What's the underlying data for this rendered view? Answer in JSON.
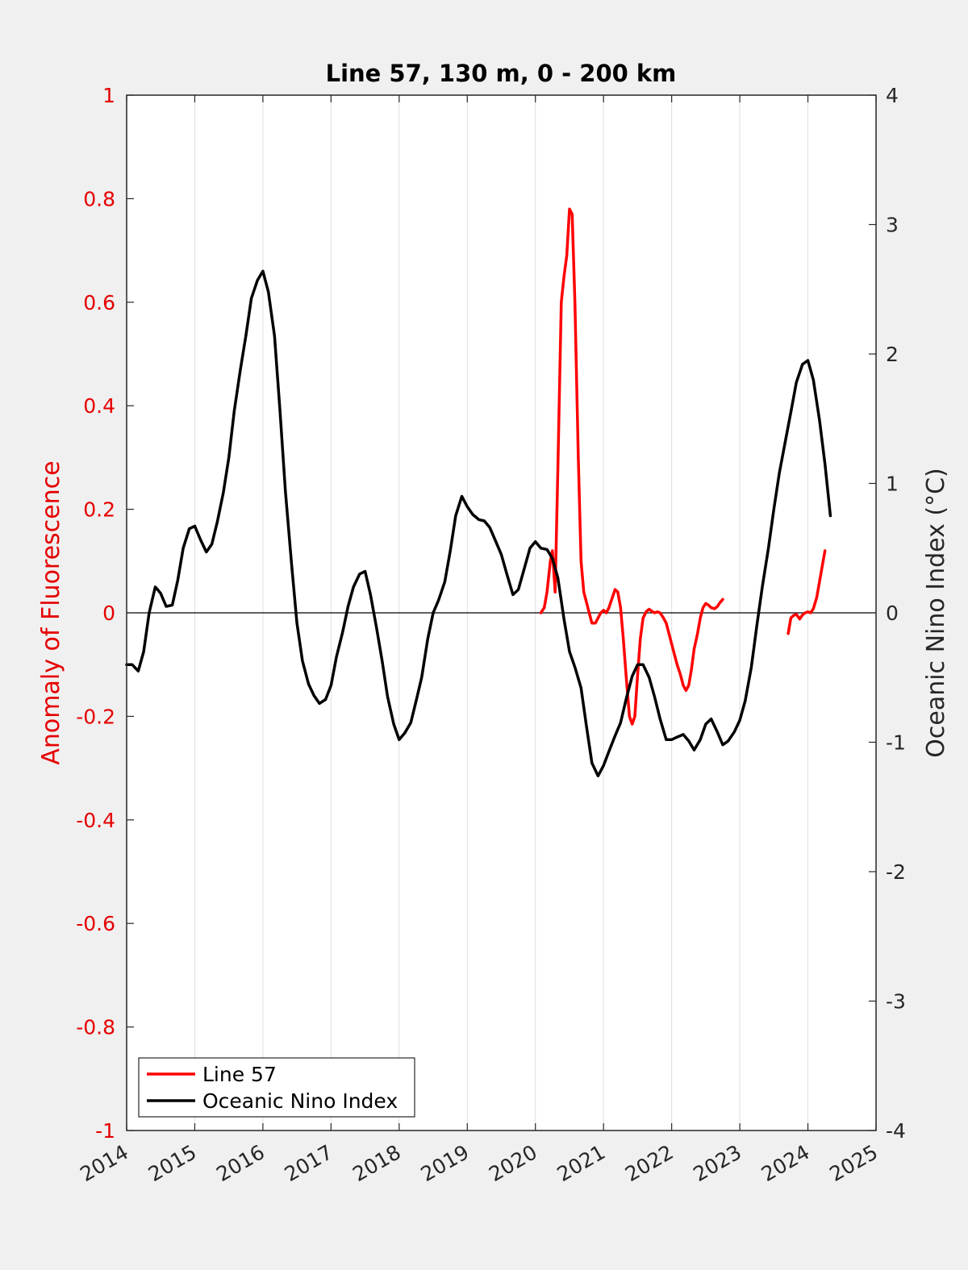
{
  "chart_data": {
    "type": "line",
    "title": "Line 57, 130 m, 0 - 200 km",
    "xlabel": "",
    "ylabel_left": "Anomaly of Fluorescence",
    "ylabel_right": "Oceanic Nino Index (°C)",
    "xlim": [
      2014,
      2025
    ],
    "ylim_left": [
      -1,
      1
    ],
    "ylim_right": [
      -4,
      4
    ],
    "x_ticks": [
      "2014",
      "2015",
      "2016",
      "2017",
      "2018",
      "2019",
      "2020",
      "2021",
      "2022",
      "2023",
      "2024",
      "2025"
    ],
    "y_ticks_left": [
      "1",
      "0.8",
      "0.6",
      "0.4",
      "0.2",
      "0",
      "-0.2",
      "-0.4",
      "-0.6",
      "-0.8",
      "-1"
    ],
    "y_ticks_right": [
      "4",
      "3",
      "2",
      "1",
      "0",
      "-1",
      "-2",
      "-3",
      "-4"
    ],
    "grid": "vertical",
    "legend_position": "bottom-left",
    "zero_line": true,
    "colors": {
      "line57": "#ff0000",
      "oni": "#000000",
      "left_axis": "#e50000",
      "right_axis": "#262626"
    },
    "series": [
      {
        "name": "Line 57",
        "axis": "left",
        "color": "#ff0000",
        "segments": [
          [
            [
              2020.08,
              0.0
            ],
            [
              2020.13,
              0.01
            ],
            [
              2020.17,
              0.04
            ],
            [
              2020.22,
              0.1
            ],
            [
              2020.25,
              0.12
            ],
            [
              2020.29,
              0.04
            ],
            [
              2020.33,
              0.28
            ],
            [
              2020.38,
              0.6
            ],
            [
              2020.42,
              0.65
            ],
            [
              2020.46,
              0.69
            ],
            [
              2020.5,
              0.78
            ],
            [
              2020.54,
              0.77
            ],
            [
              2020.58,
              0.6
            ],
            [
              2020.63,
              0.3
            ],
            [
              2020.67,
              0.1
            ],
            [
              2020.71,
              0.04
            ],
            [
              2020.75,
              0.02
            ],
            [
              2020.79,
              0.0
            ],
            [
              2020.83,
              -0.02
            ],
            [
              2020.88,
              -0.02
            ],
            [
              2020.92,
              -0.01
            ],
            [
              2020.96,
              0.0
            ],
            [
              2021.0,
              0.005
            ],
            [
              2021.04,
              0.0
            ],
            [
              2021.08,
              0.01
            ],
            [
              2021.13,
              0.03
            ],
            [
              2021.17,
              0.045
            ],
            [
              2021.21,
              0.04
            ],
            [
              2021.25,
              0.01
            ],
            [
              2021.29,
              -0.05
            ],
            [
              2021.33,
              -0.12
            ],
            [
              2021.38,
              -0.2
            ],
            [
              2021.42,
              -0.215
            ],
            [
              2021.46,
              -0.2
            ],
            [
              2021.5,
              -0.12
            ],
            [
              2021.54,
              -0.05
            ],
            [
              2021.58,
              -0.01
            ],
            [
              2021.63,
              0.003
            ],
            [
              2021.67,
              0.007
            ],
            [
              2021.71,
              0.003
            ],
            [
              2021.75,
              0.0
            ],
            [
              2021.79,
              0.002
            ],
            [
              2021.83,
              0.0
            ],
            [
              2021.88,
              -0.01
            ],
            [
              2021.92,
              -0.02
            ],
            [
              2021.96,
              -0.04
            ],
            [
              2022.0,
              -0.06
            ],
            [
              2022.04,
              -0.08
            ],
            [
              2022.08,
              -0.1
            ],
            [
              2022.13,
              -0.12
            ],
            [
              2022.17,
              -0.14
            ],
            [
              2022.21,
              -0.15
            ],
            [
              2022.25,
              -0.14
            ],
            [
              2022.29,
              -0.11
            ],
            [
              2022.33,
              -0.07
            ],
            [
              2022.38,
              -0.04
            ],
            [
              2022.42,
              -0.01
            ],
            [
              2022.46,
              0.01
            ],
            [
              2022.5,
              0.018
            ],
            [
              2022.54,
              0.015
            ],
            [
              2022.58,
              0.01
            ],
            [
              2022.63,
              0.008
            ],
            [
              2022.67,
              0.012
            ],
            [
              2022.71,
              0.02
            ],
            [
              2022.75,
              0.026
            ]
          ],
          [
            [
              2023.71,
              -0.04
            ],
            [
              2023.75,
              -0.01
            ],
            [
              2023.79,
              -0.005
            ],
            [
              2023.83,
              -0.003
            ],
            [
              2023.88,
              -0.012
            ],
            [
              2023.92,
              -0.004
            ],
            [
              2023.96,
              0.0
            ],
            [
              2024.0,
              0.002
            ],
            [
              2024.04,
              0.0
            ],
            [
              2024.08,
              0.008
            ],
            [
              2024.13,
              0.03
            ],
            [
              2024.17,
              0.06
            ],
            [
              2024.21,
              0.09
            ],
            [
              2024.25,
              0.12
            ]
          ]
        ]
      },
      {
        "name": "Oceanic Nino Index",
        "axis": "right",
        "color": "#000000",
        "points": [
          [
            2014.0,
            -0.4
          ],
          [
            2014.08,
            -0.4
          ],
          [
            2014.17,
            -0.45
          ],
          [
            2014.25,
            -0.3
          ],
          [
            2014.33,
            0.0
          ],
          [
            2014.42,
            0.2
          ],
          [
            2014.5,
            0.15
          ],
          [
            2014.58,
            0.05
          ],
          [
            2014.67,
            0.06
          ],
          [
            2014.75,
            0.25
          ],
          [
            2014.83,
            0.5
          ],
          [
            2014.92,
            0.65
          ],
          [
            2015.0,
            0.67
          ],
          [
            2015.08,
            0.57
          ],
          [
            2015.17,
            0.47
          ],
          [
            2015.25,
            0.53
          ],
          [
            2015.33,
            0.7
          ],
          [
            2015.42,
            0.93
          ],
          [
            2015.5,
            1.2
          ],
          [
            2015.58,
            1.56
          ],
          [
            2015.67,
            1.88
          ],
          [
            2015.75,
            2.14
          ],
          [
            2015.83,
            2.43
          ],
          [
            2015.92,
            2.57
          ],
          [
            2016.0,
            2.64
          ],
          [
            2016.08,
            2.48
          ],
          [
            2016.17,
            2.14
          ],
          [
            2016.25,
            1.57
          ],
          [
            2016.33,
            0.94
          ],
          [
            2016.42,
            0.38
          ],
          [
            2016.5,
            -0.08
          ],
          [
            2016.58,
            -0.37
          ],
          [
            2016.67,
            -0.55
          ],
          [
            2016.75,
            -0.64
          ],
          [
            2016.83,
            -0.7
          ],
          [
            2016.92,
            -0.67
          ],
          [
            2017.0,
            -0.56
          ],
          [
            2017.08,
            -0.34
          ],
          [
            2017.17,
            -0.15
          ],
          [
            2017.25,
            0.05
          ],
          [
            2017.33,
            0.2
          ],
          [
            2017.42,
            0.3
          ],
          [
            2017.5,
            0.32
          ],
          [
            2017.58,
            0.14
          ],
          [
            2017.67,
            -0.12
          ],
          [
            2017.75,
            -0.37
          ],
          [
            2017.83,
            -0.65
          ],
          [
            2017.92,
            -0.86
          ],
          [
            2018.0,
            -0.98
          ],
          [
            2018.08,
            -0.93
          ],
          [
            2018.17,
            -0.85
          ],
          [
            2018.25,
            -0.68
          ],
          [
            2018.33,
            -0.5
          ],
          [
            2018.42,
            -0.2
          ],
          [
            2018.5,
            0.0
          ],
          [
            2018.58,
            0.1
          ],
          [
            2018.67,
            0.24
          ],
          [
            2018.75,
            0.48
          ],
          [
            2018.83,
            0.75
          ],
          [
            2018.92,
            0.9
          ],
          [
            2019.0,
            0.82
          ],
          [
            2019.08,
            0.76
          ],
          [
            2019.17,
            0.72
          ],
          [
            2019.25,
            0.71
          ],
          [
            2019.33,
            0.66
          ],
          [
            2019.42,
            0.55
          ],
          [
            2019.5,
            0.45
          ],
          [
            2019.58,
            0.3
          ],
          [
            2019.67,
            0.14
          ],
          [
            2019.75,
            0.18
          ],
          [
            2019.83,
            0.33
          ],
          [
            2019.92,
            0.5
          ],
          [
            2020.0,
            0.55
          ],
          [
            2020.08,
            0.5
          ],
          [
            2020.17,
            0.49
          ],
          [
            2020.25,
            0.42
          ],
          [
            2020.33,
            0.27
          ],
          [
            2020.42,
            -0.05
          ],
          [
            2020.5,
            -0.3
          ],
          [
            2020.58,
            -0.42
          ],
          [
            2020.67,
            -0.58
          ],
          [
            2020.75,
            -0.88
          ],
          [
            2020.83,
            -1.16
          ],
          [
            2020.92,
            -1.26
          ],
          [
            2021.0,
            -1.18
          ],
          [
            2021.08,
            -1.07
          ],
          [
            2021.17,
            -0.95
          ],
          [
            2021.25,
            -0.85
          ],
          [
            2021.33,
            -0.67
          ],
          [
            2021.42,
            -0.49
          ],
          [
            2021.5,
            -0.4
          ],
          [
            2021.58,
            -0.4
          ],
          [
            2021.67,
            -0.5
          ],
          [
            2021.75,
            -0.65
          ],
          [
            2021.83,
            -0.82
          ],
          [
            2021.92,
            -0.98
          ],
          [
            2022.0,
            -0.98
          ],
          [
            2022.08,
            -0.96
          ],
          [
            2022.17,
            -0.94
          ],
          [
            2022.25,
            -0.99
          ],
          [
            2022.33,
            -1.06
          ],
          [
            2022.42,
            -0.98
          ],
          [
            2022.5,
            -0.86
          ],
          [
            2022.58,
            -0.82
          ],
          [
            2022.67,
            -0.92
          ],
          [
            2022.75,
            -1.02
          ],
          [
            2022.83,
            -0.99
          ],
          [
            2022.92,
            -0.92
          ],
          [
            2023.0,
            -0.83
          ],
          [
            2023.08,
            -0.68
          ],
          [
            2023.17,
            -0.42
          ],
          [
            2023.25,
            -0.1
          ],
          [
            2023.33,
            0.2
          ],
          [
            2023.42,
            0.5
          ],
          [
            2023.5,
            0.8
          ],
          [
            2023.58,
            1.08
          ],
          [
            2023.67,
            1.33
          ],
          [
            2023.75,
            1.55
          ],
          [
            2023.83,
            1.78
          ],
          [
            2023.92,
            1.92
          ],
          [
            2024.0,
            1.95
          ],
          [
            2024.08,
            1.8
          ],
          [
            2024.17,
            1.49
          ],
          [
            2024.25,
            1.15
          ],
          [
            2024.33,
            0.75
          ]
        ]
      }
    ]
  }
}
